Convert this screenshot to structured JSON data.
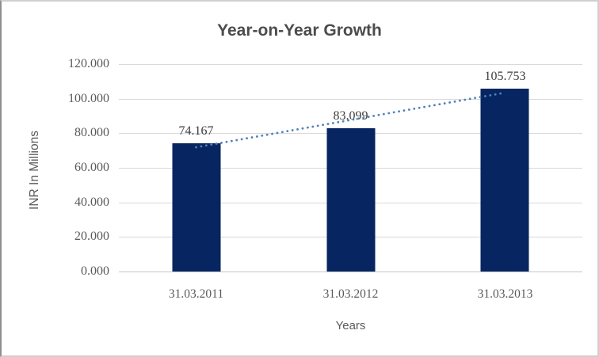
{
  "chart_data": {
    "type": "bar",
    "title": "Year-on-Year Growth",
    "xlabel": "Years",
    "ylabel": "INR In Millions",
    "categories": [
      "31.03.2011",
      "31.03.2012",
      "31.03.2013"
    ],
    "values": [
      74.167,
      83.099,
      105.753
    ],
    "data_labels": [
      "74.167",
      "83.099",
      "105.753"
    ],
    "yticks": [
      "120.000",
      "100.000",
      "80.000",
      "60.000",
      "40.000",
      "20.000",
      "0.000"
    ],
    "ylim": [
      0,
      120
    ],
    "ytick_step": 20,
    "grid": true,
    "legend_position": "none",
    "trendline": {
      "type": "linear",
      "style": "dotted",
      "color": "#4F81BD",
      "fitted_values": [
        71.88,
        87.67,
        103.47
      ]
    },
    "colors": {
      "bar": "#062561",
      "gridline": "#d9d9d9",
      "baseline": "#c6c6c6",
      "text": "#595959",
      "title": "#4c4c4c"
    }
  }
}
